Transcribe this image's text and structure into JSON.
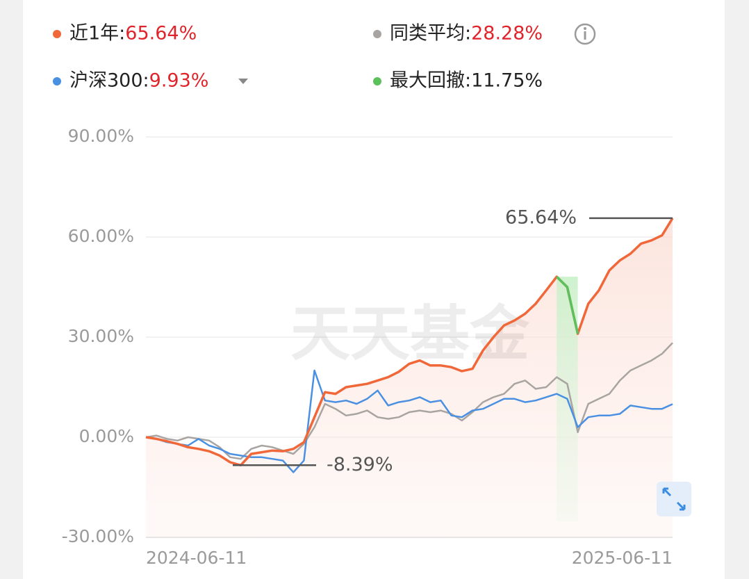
{
  "chart_data": {
    "type": "line",
    "watermark": "天天基金",
    "categories": [
      "2024-06-11",
      null,
      null,
      null,
      null,
      null,
      null,
      null,
      null,
      null,
      null,
      null,
      null,
      null,
      null,
      null,
      null,
      null,
      null,
      null,
      null,
      null,
      null,
      null,
      null,
      null,
      null,
      null,
      null,
      null,
      null,
      null,
      null,
      null,
      null,
      null,
      null,
      null,
      null,
      null,
      null,
      null,
      null,
      null,
      null,
      null,
      null,
      null,
      null,
      null,
      "2025-06-11"
    ],
    "ylim": [
      -30,
      90
    ],
    "yticks": [
      {
        "value": -30,
        "label": "-30.00%"
      },
      {
        "value": 0,
        "label": "0.00%"
      },
      {
        "value": 30,
        "label": "30.00%"
      },
      {
        "value": 60,
        "label": "60.00%"
      },
      {
        "value": 90,
        "label": "90.00%"
      }
    ],
    "grid": true,
    "series": [
      {
        "name": "同类平均:",
        "value_label": "28.28%",
        "label_color": "#e0242b",
        "color": "#a8a4a2",
        "values": [
          0,
          0.5,
          -0.5,
          -1,
          0,
          -0.5,
          -1,
          -3,
          -6,
          -6.5,
          -3.5,
          -2.5,
          -3,
          -4,
          -5,
          -2,
          3,
          10,
          8.5,
          6.5,
          7,
          8,
          6,
          5.5,
          6,
          7.5,
          8,
          7.5,
          8,
          7,
          5,
          7.5,
          10.5,
          12,
          13,
          16,
          17,
          14.5,
          15,
          18,
          16,
          1.5,
          10,
          11.5,
          13,
          17,
          20,
          21.5,
          23,
          25,
          28.28
        ]
      },
      {
        "name": "沪深300:",
        "value_label": "9.93%",
        "label_color": "#e0242b",
        "color": "#4a90e2",
        "values": [
          0,
          -0.5,
          -1.5,
          -2,
          -2.5,
          -0.5,
          -2.5,
          -3.5,
          -5,
          -5.5,
          -6,
          -6,
          -6.5,
          -7,
          -10.5,
          -7,
          20,
          11,
          10.5,
          11,
          10,
          11.5,
          14,
          9.5,
          10.5,
          11,
          12,
          10.5,
          11,
          6.5,
          6,
          8,
          8.5,
          10,
          11.5,
          11.5,
          10.5,
          11,
          12,
          13,
          11.5,
          3,
          6,
          6.5,
          6.5,
          7,
          9.5,
          9,
          8.5,
          8.5,
          9.93
        ]
      },
      {
        "name": "近1年:",
        "value_label": "65.64%",
        "label_color": "#e0242b",
        "color": "#f0683a",
        "area": true,
        "values": [
          0,
          -0.5,
          -1.2,
          -2,
          -3,
          -3.5,
          -4.2,
          -5.5,
          -7.5,
          -8.39,
          -5,
          -4.5,
          -4,
          -4.2,
          -3.5,
          -1.5,
          6,
          13.5,
          13,
          15,
          15.5,
          16,
          17,
          18,
          19.6,
          22,
          23,
          21.5,
          21.5,
          21,
          19.8,
          20.5,
          26,
          30,
          33.5,
          35,
          37,
          40,
          44,
          48.1,
          45,
          31,
          40,
          44,
          50,
          53,
          55,
          58,
          59,
          60.5,
          65.64
        ]
      },
      {
        "name": "最大回撤:",
        "value_label": "11.75%",
        "label_color": "#222222",
        "color": "#5cc05c",
        "band": true,
        "values": [
          null,
          null,
          null,
          null,
          null,
          null,
          null,
          null,
          null,
          null,
          null,
          null,
          null,
          null,
          null,
          null,
          null,
          null,
          null,
          null,
          null,
          null,
          null,
          null,
          null,
          null,
          null,
          null,
          null,
          null,
          null,
          null,
          null,
          null,
          null,
          null,
          null,
          null,
          null,
          48.1,
          45,
          31,
          null,
          null,
          null,
          null,
          null,
          null,
          null,
          null,
          null
        ]
      }
    ],
    "legend_order": [
      2,
      0,
      1,
      3
    ],
    "annotations": [
      {
        "value": 65.64,
        "label": "65.64%"
      },
      {
        "value": -8.39,
        "label": "-8.39%"
      }
    ]
  }
}
